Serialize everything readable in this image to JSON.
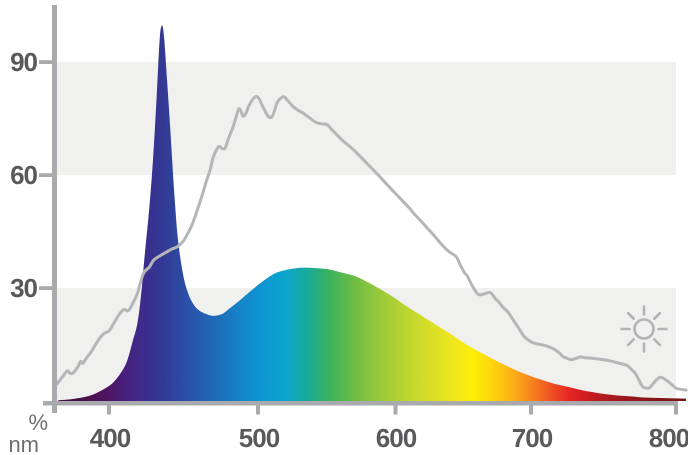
{
  "chart_data": {
    "type": "area",
    "title": "",
    "xlabel": "nm",
    "ylabel": "%",
    "x_ticks": [
      "400",
      "500",
      "600",
      "700",
      "800"
    ],
    "y_ticks": [
      "90",
      "60",
      "30"
    ],
    "x_axis_range_nm": [
      365,
      800
    ],
    "y_axis_range_percent": [
      0,
      105
    ],
    "grid": "alternating horizontal bands",
    "grid_bands_percent": [
      [
        0,
        30
      ],
      [
        60,
        90
      ]
    ],
    "legend_position": "none (sun glyph inside plot at lower right)",
    "icons": [
      {
        "name": "sun-icon",
        "meaning": "daylight reference curve marker"
      }
    ],
    "colors": {
      "band": "#f0f0ee",
      "axis": "#a8aaad",
      "tick_label_text": "#58595b",
      "unit_label_text": "#6d6e71",
      "reference_curve": "#b4b6b8",
      "spike_peak_blue": "#333a94"
    },
    "series": [
      {
        "name": "lamp-emission-spectrum",
        "style": "area filled with spectral rainbow gradient",
        "points_nm_percent": [
          [
            366,
            0.2
          ],
          [
            375,
            0.5
          ],
          [
            385,
            1.2
          ],
          [
            392,
            2.2
          ],
          [
            398,
            3.5
          ],
          [
            403,
            5
          ],
          [
            408,
            7.5
          ],
          [
            412,
            10.5
          ],
          [
            416,
            16
          ],
          [
            419,
            20.5
          ],
          [
            421.5,
            28
          ],
          [
            424,
            39
          ],
          [
            427,
            51
          ],
          [
            429.5,
            64
          ],
          [
            432,
            81
          ],
          [
            434,
            96
          ],
          [
            435.5,
            99.7
          ],
          [
            437,
            96.5
          ],
          [
            439,
            85
          ],
          [
            441,
            73
          ],
          [
            443.5,
            57
          ],
          [
            446,
            44
          ],
          [
            449.5,
            34
          ],
          [
            453,
            28.7
          ],
          [
            457,
            25.5
          ],
          [
            461,
            23.9
          ],
          [
            466,
            23
          ],
          [
            470,
            22.6
          ],
          [
            476,
            23.1
          ],
          [
            481,
            24.6
          ],
          [
            488,
            26.8
          ],
          [
            496,
            29.5
          ],
          [
            504,
            31.9
          ],
          [
            513,
            34
          ],
          [
            523,
            35
          ],
          [
            532,
            35.4
          ],
          [
            541,
            35.3
          ],
          [
            551,
            35
          ],
          [
            560,
            34.2
          ],
          [
            570,
            33.2
          ],
          [
            579,
            31.7
          ],
          [
            588,
            29.9
          ],
          [
            598,
            27.7
          ],
          [
            608,
            25.2
          ],
          [
            619,
            22.7
          ],
          [
            630,
            20.2
          ],
          [
            641,
            17.7
          ],
          [
            651,
            15.3
          ],
          [
            662,
            13
          ],
          [
            673,
            10.9
          ],
          [
            684,
            9
          ],
          [
            694,
            7.4
          ],
          [
            705,
            5.9
          ],
          [
            716,
            4.6
          ],
          [
            727,
            3.6
          ],
          [
            737,
            2.7
          ],
          [
            748,
            2
          ],
          [
            759,
            1.5
          ],
          [
            770,
            1.2
          ],
          [
            780,
            0.9
          ],
          [
            800,
            0.7
          ]
        ]
      },
      {
        "name": "reference-curve",
        "style": "thin gray line (daylight reference)",
        "points_nm_percent": [
          [
            365,
            4.5
          ],
          [
            369,
            6.5
          ],
          [
            372,
            8
          ],
          [
            374,
            7.3
          ],
          [
            376,
            7.5
          ],
          [
            379,
            9
          ],
          [
            381,
            10.5
          ],
          [
            382.5,
            10
          ],
          [
            385,
            11.5
          ],
          [
            388,
            13
          ],
          [
            391,
            15
          ],
          [
            394,
            16.8
          ],
          [
            397,
            18
          ],
          [
            400,
            18.6
          ],
          [
            403,
            20.5
          ],
          [
            406,
            22.5
          ],
          [
            409,
            24
          ],
          [
            410.5,
            24.3
          ],
          [
            412.5,
            23.9
          ],
          [
            414,
            24.5
          ],
          [
            416,
            26
          ],
          [
            419,
            28.5
          ],
          [
            423,
            33.8
          ],
          [
            427,
            35.5
          ],
          [
            430,
            37.4
          ],
          [
            434,
            38.5
          ],
          [
            438,
            39.4
          ],
          [
            442,
            40.3
          ],
          [
            446,
            41
          ],
          [
            450,
            42.5
          ],
          [
            453,
            44.6
          ],
          [
            456,
            47
          ],
          [
            459,
            50.4
          ],
          [
            462,
            54
          ],
          [
            465,
            57.9
          ],
          [
            468,
            61.5
          ],
          [
            470,
            64.8
          ],
          [
            473,
            67.3
          ],
          [
            474.5,
            67.5
          ],
          [
            476,
            67
          ],
          [
            478,
            67.2
          ],
          [
            480,
            69.5
          ],
          [
            483,
            72.5
          ],
          [
            485,
            75
          ],
          [
            487,
            77.5
          ],
          [
            488.5,
            77
          ],
          [
            490,
            75.6
          ],
          [
            492,
            76.5
          ],
          [
            494,
            78.5
          ],
          [
            497,
            80.3
          ],
          [
            499,
            80.9
          ],
          [
            501,
            80.1
          ],
          [
            503,
            78.5
          ],
          [
            505,
            77.1
          ],
          [
            507,
            75.8
          ],
          [
            509,
            75.2
          ],
          [
            511,
            76
          ],
          [
            514,
            79.3
          ],
          [
            517,
            80.5
          ],
          [
            519,
            80.8
          ],
          [
            521,
            80
          ],
          [
            524,
            78.8
          ],
          [
            526,
            78
          ],
          [
            530,
            77
          ],
          [
            533,
            76.4
          ],
          [
            537,
            75.3
          ],
          [
            542,
            74
          ],
          [
            546,
            73.6
          ],
          [
            550,
            73.4
          ],
          [
            553,
            72.3
          ],
          [
            557,
            70.8
          ],
          [
            562,
            69
          ],
          [
            566,
            67.8
          ],
          [
            570,
            66.5
          ],
          [
            575,
            64.7
          ],
          [
            580,
            62.8
          ],
          [
            585,
            60.9
          ],
          [
            590,
            59
          ],
          [
            595,
            57
          ],
          [
            600,
            55.1
          ],
          [
            605,
            53.2
          ],
          [
            610,
            51.3
          ],
          [
            614,
            49.6
          ],
          [
            619,
            47.7
          ],
          [
            624,
            45.7
          ],
          [
            628,
            44.1
          ],
          [
            633,
            42
          ],
          [
            638,
            40.1
          ],
          [
            641,
            39.3
          ],
          [
            645,
            38.2
          ],
          [
            648,
            36
          ],
          [
            651,
            34
          ],
          [
            653,
            33.2
          ],
          [
            656,
            31
          ],
          [
            659,
            29.2
          ],
          [
            661,
            28.3
          ],
          [
            663,
            28.2
          ],
          [
            665,
            28.4
          ],
          [
            668,
            28.7
          ],
          [
            670,
            28.8
          ],
          [
            672,
            28
          ],
          [
            674,
            27
          ],
          [
            676,
            26.4
          ],
          [
            679,
            25
          ],
          [
            683,
            23.6
          ],
          [
            686,
            22
          ],
          [
            689,
            20.4
          ],
          [
            692,
            18.7
          ],
          [
            695,
            17.1
          ],
          [
            698,
            16.2
          ],
          [
            701,
            15.5
          ],
          [
            705,
            15.1
          ],
          [
            710,
            14.7
          ],
          [
            714,
            14.1
          ],
          [
            717,
            13.5
          ],
          [
            720,
            12.6
          ],
          [
            722,
            11.8
          ],
          [
            725,
            11.3
          ],
          [
            728,
            11
          ],
          [
            731,
            11.3
          ],
          [
            734,
            11.7
          ],
          [
            737,
            11.5
          ],
          [
            741,
            11.4
          ],
          [
            745,
            11.2
          ],
          [
            750,
            11
          ],
          [
            754,
            10.7
          ],
          [
            758,
            10.3
          ],
          [
            762,
            9.9
          ],
          [
            766,
            9.5
          ],
          [
            769,
            8.5
          ],
          [
            772,
            7.3
          ],
          [
            774,
            5.9
          ],
          [
            777,
            3.8
          ],
          [
            779,
            3.5
          ],
          [
            781,
            3.4
          ],
          [
            783,
            4
          ],
          [
            785,
            5
          ],
          [
            787,
            5.8
          ],
          [
            789,
            6.3
          ],
          [
            791,
            6.1
          ],
          [
            794,
            5.3
          ],
          [
            797,
            4.4
          ],
          [
            800,
            3.4
          ],
          [
            803,
            3.1
          ],
          [
            807,
            2.9
          ]
        ]
      }
    ],
    "gradient_stops": [
      {
        "offset": 0.0,
        "color": "#450d3f"
      },
      {
        "offset": 0.045,
        "color": "#4a1048"
      },
      {
        "offset": 0.08,
        "color": "#4e1565"
      },
      {
        "offset": 0.11,
        "color": "#46217f"
      },
      {
        "offset": 0.145,
        "color": "#3a2f90"
      },
      {
        "offset": 0.17,
        "color": "#323a94"
      },
      {
        "offset": 0.2,
        "color": "#2b4da5"
      },
      {
        "offset": 0.24,
        "color": "#2264b4"
      },
      {
        "offset": 0.285,
        "color": "#1680c6"
      },
      {
        "offset": 0.33,
        "color": "#0d98d4"
      },
      {
        "offset": 0.365,
        "color": "#0ca6cb"
      },
      {
        "offset": 0.395,
        "color": "#16aa9b"
      },
      {
        "offset": 0.43,
        "color": "#37b25f"
      },
      {
        "offset": 0.47,
        "color": "#6cbc45"
      },
      {
        "offset": 0.51,
        "color": "#97c93c"
      },
      {
        "offset": 0.55,
        "color": "#b9d432"
      },
      {
        "offset": 0.595,
        "color": "#d9df28"
      },
      {
        "offset": 0.635,
        "color": "#f3e71b"
      },
      {
        "offset": 0.66,
        "color": "#fcef07"
      },
      {
        "offset": 0.69,
        "color": "#fdd70b"
      },
      {
        "offset": 0.725,
        "color": "#fbae18"
      },
      {
        "offset": 0.755,
        "color": "#f5831f"
      },
      {
        "offset": 0.785,
        "color": "#ef5123"
      },
      {
        "offset": 0.81,
        "color": "#e92a25"
      },
      {
        "offset": 0.835,
        "color": "#d31d21"
      },
      {
        "offset": 0.87,
        "color": "#b01b1e"
      },
      {
        "offset": 0.91,
        "color": "#95181b"
      },
      {
        "offset": 0.95,
        "color": "#831619"
      },
      {
        "offset": 1.0,
        "color": "#7b1517"
      }
    ]
  }
}
